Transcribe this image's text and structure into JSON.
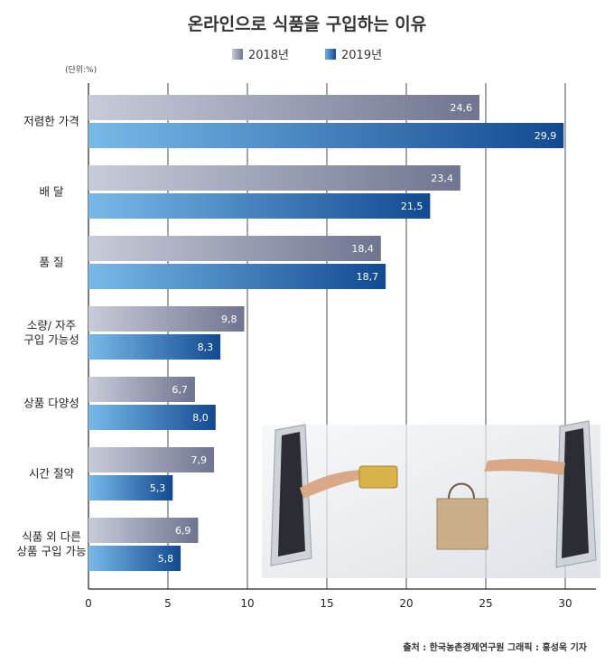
{
  "chart_data": {
    "type": "bar",
    "orientation": "horizontal",
    "title": "온라인으로 식품을 구입하는 이유",
    "unit_label": "(단위:%)",
    "categories": [
      [
        "저렴한 가격"
      ],
      [
        "배  달"
      ],
      [
        "품  질"
      ],
      [
        "소량/ 자주",
        "구입 가능성"
      ],
      [
        "상품 다양성"
      ],
      [
        "시간 절약"
      ],
      [
        "식품 외 다른",
        "상품 구입 가능"
      ]
    ],
    "series": [
      {
        "name": "2018년",
        "color": "#8a8fa6",
        "values": [
          24.6,
          23.4,
          18.4,
          9.8,
          6.7,
          7.9,
          6.9
        ],
        "labels": [
          "24,6",
          "23,4",
          "18,4",
          "9,8",
          "6,7",
          "7,9",
          "6,9"
        ]
      },
      {
        "name": "2019년",
        "color": "#1f5fa8",
        "values": [
          29.9,
          21.5,
          18.7,
          8.3,
          8.0,
          5.3,
          5.8
        ],
        "labels": [
          "29,9",
          "21,5",
          "18,7",
          "8,3",
          "8,0",
          "5,3",
          "5,8"
        ]
      }
    ],
    "xlim": [
      0,
      30
    ],
    "xticks": [
      "0",
      "5",
      "10",
      "15",
      "20",
      "25",
      "30"
    ],
    "grid": true,
    "legend_position": "top-center",
    "source": "출처 : 한국농촌경제연구원 그래픽 : 홍성욱 기자"
  }
}
